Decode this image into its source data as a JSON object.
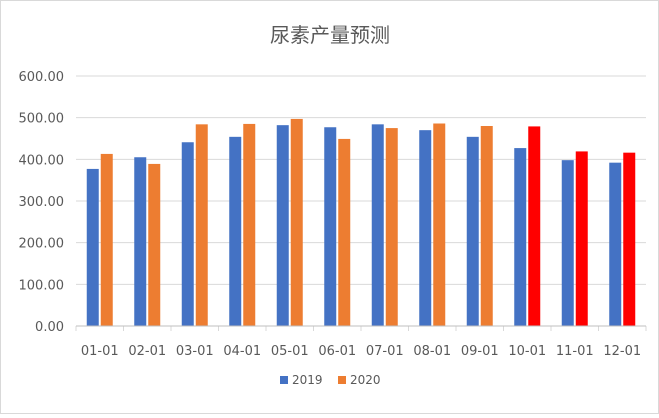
{
  "chart_data": {
    "type": "bar",
    "title": "尿素产量预测",
    "categories": [
      "01-01",
      "02-01",
      "03-01",
      "04-01",
      "05-01",
      "06-01",
      "07-01",
      "08-01",
      "09-01",
      "10-01",
      "11-01",
      "12-01"
    ],
    "series": [
      {
        "name": "2019",
        "color": "#4472C4",
        "values": [
          377,
          405,
          441,
          454,
          482,
          477,
          484,
          470,
          454,
          427,
          398,
          392
        ]
      },
      {
        "name": "2020",
        "color": "#ED7D31",
        "forecast_color": "#FF0000",
        "forecast_from_index": 9,
        "values": [
          413,
          389,
          484,
          485,
          497,
          449,
          475,
          486,
          480,
          479,
          419,
          416
        ]
      }
    ],
    "y_ticks": [
      "0.00",
      "100.00",
      "200.00",
      "300.00",
      "400.00",
      "500.00",
      "600.00"
    ],
    "ylim": [
      0,
      600
    ],
    "grid": true,
    "legend": "bottom"
  }
}
